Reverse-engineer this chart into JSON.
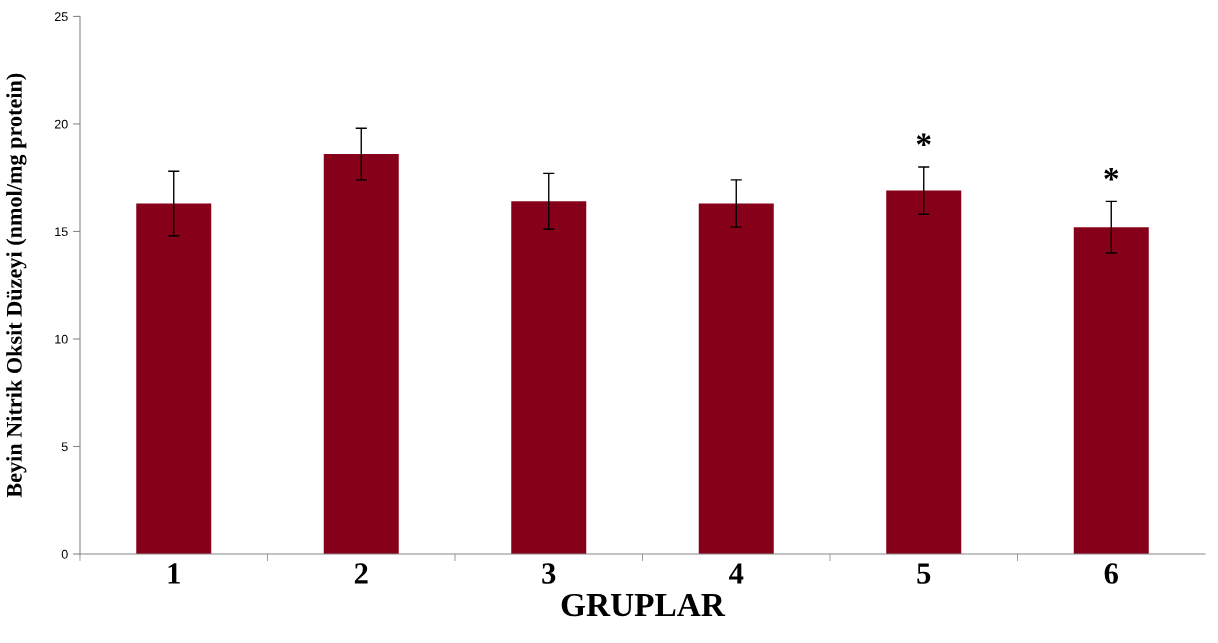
{
  "chart_data": {
    "type": "bar",
    "xlabel": "GRUPLAR",
    "ylabel": "Beyin Nitrik Oksit Düzeyi (nmol/mg protein)",
    "categories": [
      "1",
      "2",
      "3",
      "4",
      "5",
      "6"
    ],
    "values": [
      16.3,
      18.6,
      16.4,
      16.3,
      16.9,
      15.2
    ],
    "errors": [
      1.5,
      1.2,
      1.3,
      1.1,
      1.1,
      1.2
    ],
    "color": "#860019",
    "ylim": [
      0,
      25
    ],
    "yticks": [
      0,
      5,
      10,
      15,
      20,
      25
    ],
    "grid": false,
    "legend": false,
    "annotations": [
      {
        "text": "*",
        "x": "5",
        "y": 16.9
      },
      {
        "text": "*",
        "x": "6",
        "y": 15.2
      }
    ]
  }
}
